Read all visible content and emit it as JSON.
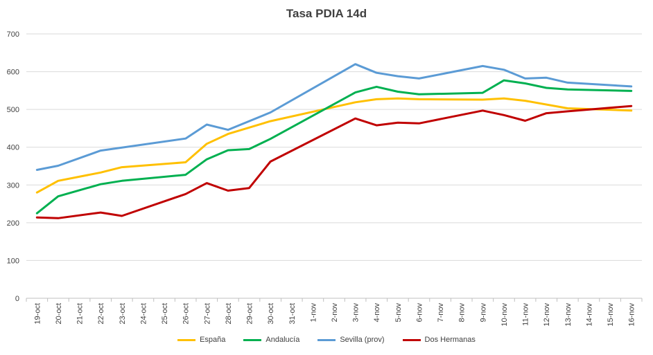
{
  "chart_data": {
    "type": "line",
    "title": "Tasa PDIA 14d",
    "xlabel": "",
    "ylabel": "",
    "ylim": [
      0,
      700
    ],
    "yticks": [
      0,
      100,
      200,
      300,
      400,
      500,
      600,
      700
    ],
    "grid": true,
    "legend_position": "bottom",
    "categories": [
      "19-oct",
      "20-oct",
      "21-oct",
      "22-oct",
      "23-oct",
      "24-oct",
      "25-oct",
      "26-oct",
      "27-oct",
      "28-oct",
      "29-oct",
      "30-oct",
      "31-oct",
      "1-nov",
      "2-nov",
      "3-nov",
      "4-nov",
      "5-nov",
      "6-nov",
      "7-nov",
      "8-nov",
      "9-nov",
      "10-nov",
      "11-nov",
      "12-nov",
      "13-nov",
      "14-nov",
      "15-nov",
      "16-nov"
    ],
    "series": [
      {
        "name": "España",
        "color": "#FFC000",
        "values": [
          280,
          311,
          null,
          333,
          347,
          null,
          null,
          360,
          409,
          435,
          null,
          469,
          null,
          null,
          null,
          519,
          527,
          529,
          527,
          null,
          null,
          526,
          529,
          523,
          null,
          503,
          null,
          null,
          497
        ]
      },
      {
        "name": "Andalucía",
        "color": "#00B050",
        "values": [
          225,
          270,
          null,
          302,
          311,
          null,
          null,
          327,
          368,
          392,
          395,
          422,
          null,
          null,
          null,
          545,
          560,
          547,
          540,
          null,
          null,
          544,
          577,
          569,
          557,
          553,
          null,
          null,
          549
        ]
      },
      {
        "name": "Sevilla (prov)",
        "color": "#5B9BD5",
        "values": [
          340,
          351,
          null,
          391,
          null,
          null,
          null,
          423,
          460,
          446,
          null,
          492,
          null,
          null,
          null,
          620,
          597,
          588,
          582,
          null,
          null,
          615,
          605,
          582,
          584,
          571,
          null,
          null,
          561
        ]
      },
      {
        "name": "Dos Hermanas",
        "color": "#C00000",
        "values": [
          214,
          212,
          null,
          227,
          218,
          null,
          null,
          276,
          305,
          285,
          292,
          362,
          null,
          null,
          null,
          476,
          458,
          465,
          463,
          null,
          null,
          497,
          485,
          470,
          490,
          495,
          null,
          null,
          509
        ]
      }
    ]
  }
}
